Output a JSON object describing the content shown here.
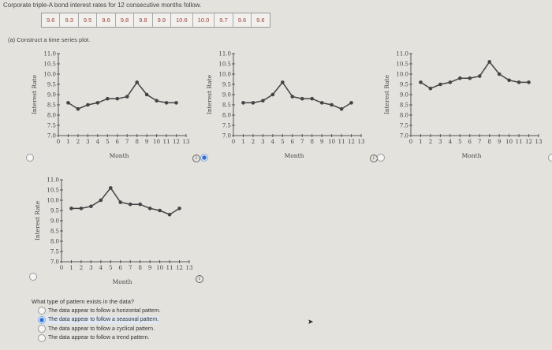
{
  "title": "Corporate triple-A bond interest rates for 12 consecutive months follow.",
  "data_values": [
    "9.6",
    "9.3",
    "9.5",
    "9.6",
    "9.8",
    "9.8",
    "9.9",
    "10.6",
    "10.0",
    "9.7",
    "9.6",
    "9.6"
  ],
  "part_a": "(a) Construct a time series plot.",
  "axis": {
    "ylabel": "Interest Rate",
    "xlabel": "Month",
    "yticks": [
      "7.0",
      "7.5",
      "8.0",
      "8.5",
      "9.0",
      "9.5",
      "10.0",
      "10.5",
      "11.0"
    ],
    "xticks": [
      "0",
      "1",
      "2",
      "3",
      "4",
      "5",
      "6",
      "7",
      "8",
      "9",
      "10",
      "11",
      "12",
      "13"
    ]
  },
  "chart_data": [
    {
      "type": "line",
      "option": "A",
      "selected": false,
      "x": [
        1,
        2,
        3,
        4,
        5,
        6,
        7,
        8,
        9,
        10,
        11,
        12
      ],
      "y": [
        8.6,
        8.3,
        8.5,
        8.6,
        8.8,
        8.8,
        8.9,
        9.6,
        9.0,
        8.7,
        8.6,
        8.6
      ],
      "xlabel": "Month",
      "ylabel": "Interest Rate",
      "xlim": [
        0,
        13
      ],
      "ylim": [
        7.0,
        11.0
      ]
    },
    {
      "type": "line",
      "option": "B",
      "selected": true,
      "x": [
        1,
        2,
        3,
        4,
        5,
        6,
        7,
        8,
        9,
        10,
        11,
        12
      ],
      "y": [
        8.6,
        8.6,
        8.7,
        9.0,
        9.6,
        8.9,
        8.8,
        8.8,
        8.6,
        8.5,
        8.3,
        8.6
      ],
      "xlabel": "Month",
      "ylabel": "Interest Rate",
      "xlim": [
        0,
        13
      ],
      "ylim": [
        7.0,
        11.0
      ]
    },
    {
      "type": "line",
      "option": "C",
      "selected": false,
      "x": [
        1,
        2,
        3,
        4,
        5,
        6,
        7,
        8,
        9,
        10,
        11,
        12
      ],
      "y": [
        9.6,
        9.3,
        9.5,
        9.6,
        9.8,
        9.8,
        9.9,
        10.6,
        10.0,
        9.7,
        9.6,
        9.6
      ],
      "xlabel": "Month",
      "ylabel": "Interest Rate",
      "xlim": [
        0,
        13
      ],
      "ylim": [
        7.0,
        11.0
      ]
    },
    {
      "type": "line",
      "option": "D",
      "selected": false,
      "x": [
        1,
        2,
        3,
        4,
        5,
        6,
        7,
        8,
        9,
        10,
        11,
        12
      ],
      "y": [
        9.6,
        9.6,
        9.7,
        10.0,
        10.6,
        9.9,
        9.8,
        9.8,
        9.6,
        9.5,
        9.3,
        9.6
      ],
      "xlabel": "Month",
      "ylabel": "Interest Rate",
      "xlim": [
        0,
        13
      ],
      "ylim": [
        7.0,
        11.0
      ]
    }
  ],
  "question": "What type of pattern exists in the data?",
  "options": [
    {
      "label": "The data appear to follow a horizontal pattern.",
      "selected": false
    },
    {
      "label": "The data appear to follow a seasonal pattern.",
      "selected": true
    },
    {
      "label": "The data appear to follow a cyclical pattern.",
      "selected": false
    },
    {
      "label": "The data appear to follow a trend pattern.",
      "selected": false
    }
  ],
  "info_icon": "i",
  "colors": {
    "line": "#444444",
    "selected": "#2a6fd6",
    "data_text": "#a04040"
  }
}
